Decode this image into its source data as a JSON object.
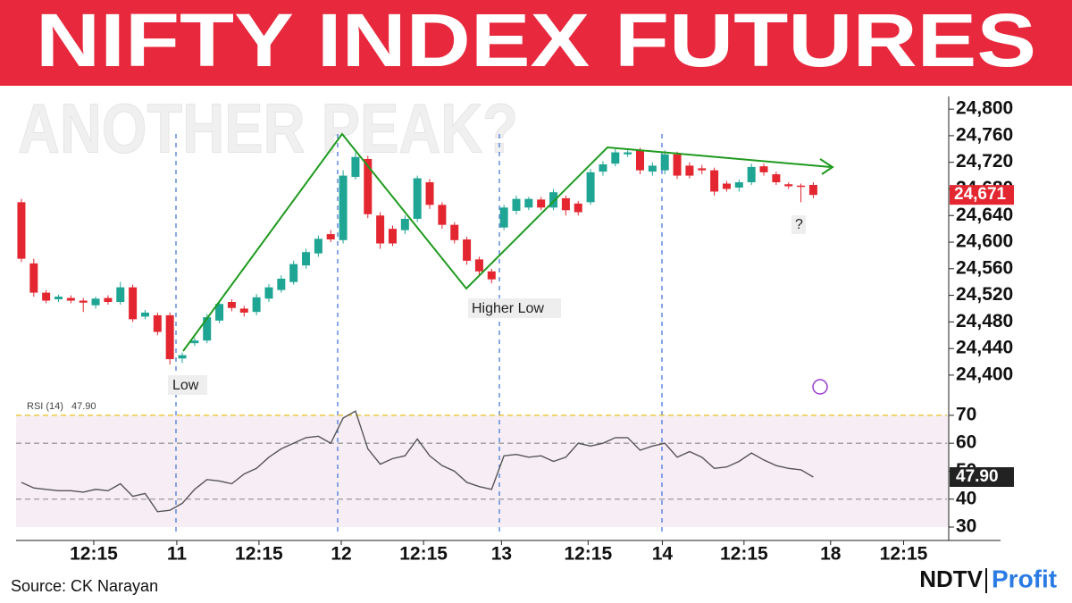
{
  "header": {
    "title": "NIFTY INDEX FUTURES",
    "subtitle": "ANOTHER PEAK?"
  },
  "footer": {
    "source": "Source: CK Narayan",
    "brand": "NDTV",
    "brand_product": "Profit"
  },
  "chart_data": [
    {
      "type": "candlestick",
      "annotations": [
        "Low",
        "Higher Low",
        "?"
      ],
      "last_label": "24,671",
      "up_color": "#1fa594",
      "down_color": "#e3262f",
      "x": [
        0,
        1,
        2,
        3,
        4,
        5,
        6,
        7,
        8,
        9,
        10,
        11,
        12,
        13,
        14,
        15,
        16,
        17,
        18,
        19,
        20,
        21,
        22,
        23,
        24,
        25,
        26,
        27,
        28,
        29,
        30,
        31,
        32,
        33,
        34,
        35,
        36,
        37,
        38,
        39,
        40,
        41,
        42,
        43,
        44,
        45,
        46,
        47,
        48,
        49,
        50,
        51,
        52,
        53,
        54,
        55,
        56,
        57,
        58,
        59,
        60,
        61,
        62,
        63,
        64
      ],
      "open": [
        24660,
        24568,
        24524,
        24514,
        24516,
        24512,
        24505,
        24516,
        24510,
        24532,
        24488,
        24490,
        24490,
        24425,
        24448,
        24452,
        24482,
        24510,
        24500,
        24495,
        24515,
        24528,
        24540,
        24565,
        24583,
        24612,
        24603,
        24698,
        24725,
        24640,
        24620,
        24618,
        24635,
        24690,
        24656,
        24626,
        24604,
        24574,
        24556,
        24622,
        24647,
        24652,
        24664,
        24652,
        24666,
        24658,
        24660,
        24706,
        24718,
        24732,
        24738,
        24706,
        24708,
        24732,
        24715,
        24711,
        24708,
        24688,
        24682,
        24690,
        24714,
        24702,
        24687,
        24685,
        24686
      ],
      "high": [
        24665,
        24575,
        24528,
        24521,
        24520,
        24516,
        24518,
        24520,
        24540,
        24536,
        24498,
        24494,
        24494,
        24434,
        24456,
        24492,
        24512,
        24514,
        24504,
        24522,
        24537,
        24550,
        24572,
        24590,
        24610,
        24618,
        24708,
        24735,
        24730,
        24645,
        24625,
        24640,
        24700,
        24695,
        24660,
        24630,
        24608,
        24578,
        24560,
        24656,
        24670,
        24668,
        24668,
        24680,
        24670,
        24662,
        24710,
        24722,
        24740,
        24740,
        24742,
        24720,
        24738,
        24736,
        24720,
        24716,
        24712,
        24692,
        24694,
        24718,
        24718,
        24706,
        24690,
        24688,
        24690
      ],
      "low": [
        24570,
        24518,
        24508,
        24510,
        24508,
        24495,
        24500,
        24506,
        24506,
        24480,
        24484,
        24460,
        24416,
        24418,
        24444,
        24448,
        24478,
        24496,
        24488,
        24490,
        24510,
        24524,
        24536,
        24560,
        24578,
        24600,
        24598,
        24694,
        24636,
        24590,
        24594,
        24612,
        24630,
        24650,
        24620,
        24598,
        24566,
        24550,
        24538,
        24618,
        24642,
        24648,
        24648,
        24648,
        24640,
        24640,
        24656,
        24700,
        24714,
        24728,
        24702,
        24700,
        24702,
        24695,
        24696,
        24702,
        24670,
        24676,
        24676,
        24686,
        24700,
        24686,
        24680,
        24660,
        24666
      ],
      "close": [
        24575,
        24524,
        24512,
        24518,
        24512,
        24509,
        24515,
        24510,
        24532,
        24484,
        24494,
        24465,
        24424,
        24430,
        24452,
        24487,
        24507,
        24501,
        24494,
        24517,
        24532,
        24545,
        24567,
        24585,
        24605,
        24604,
        24700,
        24728,
        24642,
        24598,
        24598,
        24635,
        24696,
        24656,
        24626,
        24603,
        24572,
        24556,
        24544,
        24652,
        24665,
        24665,
        24652,
        24675,
        24648,
        24645,
        24705,
        24717,
        24735,
        24735,
        24708,
        24715,
        24732,
        24700,
        24700,
        24708,
        24676,
        24680,
        24690,
        24713,
        24705,
        24690,
        24684,
        24683,
        24671
      ],
      "xlim": [
        -0.43,
        74.8
      ],
      "ylim": [
        24373,
        24819
      ],
      "yticks": [
        {
          "value": 24400,
          "label": "24,400"
        },
        {
          "value": 24440,
          "label": "24,440"
        },
        {
          "value": 24480,
          "label": "24,480"
        },
        {
          "value": 24520,
          "label": "24,520"
        },
        {
          "value": 24560,
          "label": "24,560"
        },
        {
          "value": 24600,
          "label": "24,600"
        },
        {
          "value": 24640,
          "label": "24,640"
        },
        {
          "value": 24680,
          "label": "24,680"
        },
        {
          "value": 24720,
          "label": "24,720"
        },
        {
          "value": 24760,
          "label": "24,760"
        },
        {
          "value": 24800,
          "label": "24,800"
        }
      ]
    },
    {
      "type": "line",
      "legend_name": "RSI (14)",
      "legend_value": "47.90",
      "last_label": "47.90",
      "color": "#555",
      "x": [
        0,
        1,
        2,
        3,
        4,
        5,
        6,
        7,
        8,
        9,
        10,
        11,
        12,
        13,
        14,
        15,
        16,
        17,
        18,
        19,
        20,
        21,
        22,
        23,
        24,
        25,
        26,
        27,
        28,
        29,
        30,
        31,
        32,
        33,
        34,
        35,
        36,
        37,
        38,
        39,
        40,
        41,
        42,
        43,
        44,
        45,
        46,
        47,
        48,
        49,
        50,
        51,
        52,
        53,
        54,
        55,
        56,
        57,
        58,
        59,
        60,
        61,
        62,
        63,
        64
      ],
      "values": [
        46,
        44,
        43.5,
        43,
        43,
        42.5,
        43.5,
        43,
        45.5,
        41,
        42,
        35.5,
        36,
        38.5,
        43.5,
        47,
        46.5,
        45.5,
        49,
        51,
        55,
        58,
        60,
        62,
        62.5,
        60,
        69,
        71.5,
        58,
        52.5,
        54.5,
        55.5,
        61.5,
        55.5,
        52,
        50,
        46,
        44.5,
        43.5,
        55.5,
        56,
        55,
        55.5,
        53.5,
        55,
        60,
        59,
        60,
        62,
        62,
        57.5,
        59,
        60,
        55,
        57,
        55,
        51,
        51.5,
        53.5,
        56.5,
        54,
        52,
        51,
        50.5,
        47.9
      ],
      "band": [
        30,
        70
      ],
      "levels": [
        {
          "value": 70,
          "color": "#e8c21a"
        },
        {
          "value": 60,
          "color": "#999999"
        },
        {
          "value": 40,
          "color": "#999999"
        }
      ],
      "xlim": [
        -0.43,
        74.8
      ],
      "ylim": [
        26.8,
        75.4
      ],
      "yticks": [
        30,
        40,
        50,
        60,
        70
      ],
      "xticks": [
        {
          "value": 5.85,
          "label": "12:15"
        },
        {
          "value": 12.56,
          "label": "11"
        },
        {
          "value": 19.2,
          "label": "12:15"
        },
        {
          "value": 25.85,
          "label": "12"
        },
        {
          "value": 32.5,
          "label": "12:15"
        },
        {
          "value": 38.8,
          "label": "13"
        },
        {
          "value": 45.8,
          "label": "12:15"
        },
        {
          "value": 51.8,
          "label": "14"
        },
        {
          "value": 58.4,
          "label": "12:15"
        },
        {
          "value": 65.4,
          "label": "18"
        },
        {
          "value": 71.3,
          "label": "12:15"
        }
      ]
    }
  ]
}
